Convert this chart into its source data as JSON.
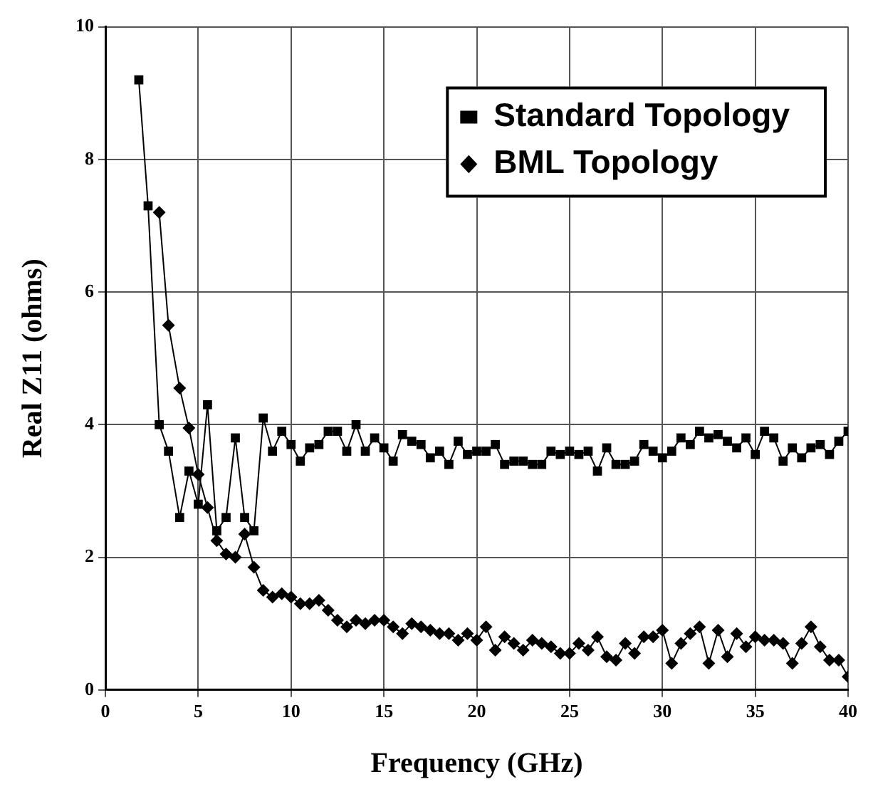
{
  "chart_data": {
    "type": "line",
    "xlabel": "Frequency (GHz)",
    "ylabel": "Real Z11 (ohms)",
    "xlim": [
      0,
      40
    ],
    "xticks": [
      0,
      5,
      10,
      15,
      20,
      25,
      30,
      35,
      40
    ],
    "ylim": [
      0,
      10
    ],
    "yticks": [
      0,
      2,
      4,
      6,
      8,
      10
    ],
    "grid": true,
    "legend": "top right",
    "line_style": "solid",
    "series": [
      {
        "name": "Standard Topology",
        "color": "#000000",
        "marker": "square",
        "x": [
          1.8,
          2.3,
          2.9,
          3.4,
          4.0,
          4.5,
          5.0,
          5.5,
          6.0,
          6.5,
          7.0,
          7.5,
          8.0,
          8.5,
          9.0,
          9.5,
          10.0,
          10.5,
          11.0,
          11.5,
          12.0,
          12.5,
          13.0,
          13.5,
          14.0,
          14.5,
          15.0,
          15.5,
          16.0,
          16.5,
          17.0,
          17.5,
          18.0,
          18.5,
          19.0,
          19.5,
          20.0,
          20.5,
          21.0,
          21.5,
          22.0,
          22.5,
          23.0,
          23.5,
          24.0,
          24.5,
          25.0,
          25.5,
          26.0,
          26.5,
          27.0,
          27.5,
          28.0,
          28.5,
          29.0,
          29.5,
          30.0,
          30.5,
          31.0,
          31.5,
          32.0,
          32.5,
          33.0,
          33.5,
          34.0,
          34.5,
          35.0,
          35.5,
          36.0,
          36.5,
          37.0,
          37.5,
          38.0,
          38.5,
          39.0,
          39.5,
          40.0
        ],
        "values": [
          9.2,
          7.3,
          4.0,
          3.6,
          2.6,
          3.3,
          2.8,
          4.3,
          2.4,
          2.6,
          3.8,
          2.6,
          2.4,
          4.1,
          3.6,
          3.9,
          3.7,
          3.45,
          3.65,
          3.7,
          3.9,
          3.9,
          3.6,
          4.0,
          3.6,
          3.8,
          3.65,
          3.45,
          3.85,
          3.75,
          3.7,
          3.5,
          3.6,
          3.4,
          3.75,
          3.55,
          3.6,
          3.6,
          3.7,
          3.4,
          3.45,
          3.45,
          3.4,
          3.4,
          3.6,
          3.55,
          3.6,
          3.55,
          3.6,
          3.3,
          3.65,
          3.4,
          3.4,
          3.45,
          3.7,
          3.6,
          3.5,
          3.6,
          3.8,
          3.7,
          3.9,
          3.8,
          3.85,
          3.75,
          3.65,
          3.8,
          3.55,
          3.9,
          3.8,
          3.45,
          3.65,
          3.5,
          3.65,
          3.7,
          3.55,
          3.75,
          3.9
        ]
      },
      {
        "name": "BML Topology",
        "color": "#000000",
        "marker": "diamond",
        "x": [
          2.9,
          3.4,
          4.0,
          4.5,
          5.0,
          5.5,
          6.0,
          6.5,
          7.0,
          7.5,
          8.0,
          8.5,
          9.0,
          9.5,
          10.0,
          10.5,
          11.0,
          11.5,
          12.0,
          12.5,
          13.0,
          13.5,
          14.0,
          14.5,
          15.0,
          15.5,
          16.0,
          16.5,
          17.0,
          17.5,
          18.0,
          18.5,
          19.0,
          19.5,
          20.0,
          20.5,
          21.0,
          21.5,
          22.0,
          22.5,
          23.0,
          23.5,
          24.0,
          24.5,
          25.0,
          25.5,
          26.0,
          26.5,
          27.0,
          27.5,
          28.0,
          28.5,
          29.0,
          29.5,
          30.0,
          30.5,
          31.0,
          31.5,
          32.0,
          32.5,
          33.0,
          33.5,
          34.0,
          34.5,
          35.0,
          35.5,
          36.0,
          36.5,
          37.0,
          37.5,
          38.0,
          38.5,
          39.0,
          39.5,
          40.0
        ],
        "values": [
          7.2,
          5.5,
          4.55,
          3.95,
          3.25,
          2.75,
          2.25,
          2.05,
          2.0,
          2.35,
          1.85,
          1.5,
          1.4,
          1.45,
          1.4,
          1.3,
          1.3,
          1.35,
          1.2,
          1.05,
          0.95,
          1.05,
          1.0,
          1.05,
          1.05,
          0.95,
          0.85,
          1.0,
          0.95,
          0.9,
          0.85,
          0.85,
          0.75,
          0.85,
          0.75,
          0.95,
          0.6,
          0.8,
          0.7,
          0.6,
          0.75,
          0.7,
          0.65,
          0.55,
          0.55,
          0.7,
          0.6,
          0.8,
          0.5,
          0.45,
          0.7,
          0.55,
          0.8,
          0.8,
          0.9,
          0.4,
          0.7,
          0.85,
          0.95,
          0.4,
          0.9,
          0.5,
          0.85,
          0.65,
          0.8,
          0.75,
          0.75,
          0.7,
          0.4,
          0.7,
          0.95,
          0.65,
          0.45,
          0.45,
          0.2
        ]
      }
    ]
  }
}
